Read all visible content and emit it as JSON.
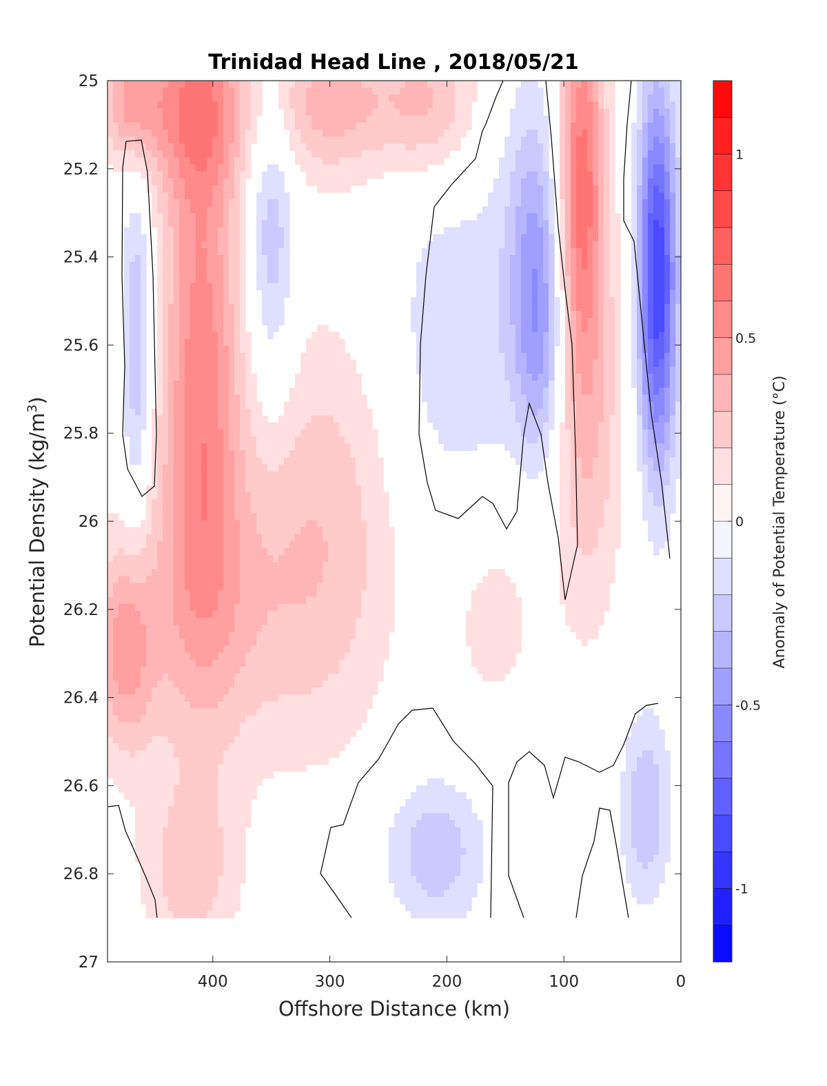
{
  "chart_data": {
    "type": "filled-contour",
    "title": "Trinidad Head Line , 2018/05/21",
    "xlabel": "Offshore Distance (km)",
    "ylabel": "Potential Density (kg/m",
    "ylabel_sup": "3",
    "ylabel_end": ")",
    "xlim": [
      490,
      0
    ],
    "ylim": [
      25,
      27
    ],
    "x_reversed": true,
    "y_reversed": true,
    "x_ticks": [
      {
        "value": 400,
        "label": "400"
      },
      {
        "value": 300,
        "label": "300"
      },
      {
        "value": 200,
        "label": "200"
      },
      {
        "value": 100,
        "label": "100"
      },
      {
        "value": 0,
        "label": "0"
      }
    ],
    "y_ticks": [
      {
        "value": 25,
        "label": "25"
      },
      {
        "value": 25.2,
        "label": "25.2"
      },
      {
        "value": 25.4,
        "label": "25.4"
      },
      {
        "value": 25.6,
        "label": "25.6"
      },
      {
        "value": 25.8,
        "label": "25.8"
      },
      {
        "value": 26,
        "label": "26"
      },
      {
        "value": 26.2,
        "label": "26.2"
      },
      {
        "value": 26.4,
        "label": "26.4"
      },
      {
        "value": 26.6,
        "label": "26.6"
      },
      {
        "value": 26.8,
        "label": "26.8"
      },
      {
        "value": 27,
        "label": "27"
      }
    ],
    "data_bottom": 26.9,
    "grid": false,
    "colorbar": {
      "label": "Anomaly of Potential Temperature (°C)",
      "range": [
        -1.2,
        1.2
      ],
      "step": 0.1,
      "ticks": [
        {
          "value": 1,
          "label": "1"
        },
        {
          "value": 0.5,
          "label": "0.5"
        },
        {
          "value": 0,
          "label": "0"
        },
        {
          "value": -0.5,
          "label": "-0.5"
        },
        {
          "value": -1,
          "label": "-1"
        }
      ],
      "colors": {
        "cold": "#0000ff",
        "neutral": "#ffffff",
        "warm": "#ff0000"
      }
    },
    "field_features": [
      {
        "x": 410,
        "y": 25.65,
        "amp": 0.55,
        "sx": 24,
        "sy": 0.45
      },
      {
        "x": 415,
        "y": 25.05,
        "amp": 0.45,
        "sx": 30,
        "sy": 0.15
      },
      {
        "x": 300,
        "y": 25.05,
        "amp": 0.35,
        "sx": 40,
        "sy": 0.12
      },
      {
        "x": 215,
        "y": 25.05,
        "amp": 0.3,
        "sx": 30,
        "sy": 0.12
      },
      {
        "x": 470,
        "y": 25.05,
        "amp": 0.4,
        "sx": 18,
        "sy": 0.1
      },
      {
        "x": 475,
        "y": 26.3,
        "amp": 0.38,
        "sx": 18,
        "sy": 0.16
      },
      {
        "x": 300,
        "y": 26.0,
        "amp": 0.25,
        "sx": 45,
        "sy": 0.35
      },
      {
        "x": 400,
        "y": 26.2,
        "amp": 0.25,
        "sx": 60,
        "sy": 0.25
      },
      {
        "x": 160,
        "y": 26.2,
        "amp": 0.15,
        "sx": 30,
        "sy": 0.2
      },
      {
        "x": 85,
        "y": 25.2,
        "amp": 0.6,
        "sx": 14,
        "sy": 0.3
      },
      {
        "x": 80,
        "y": 25.75,
        "amp": 0.3,
        "sx": 22,
        "sy": 0.35
      },
      {
        "x": 420,
        "y": 26.8,
        "amp": 0.25,
        "sx": 30,
        "sy": 0.15
      },
      {
        "x": 465,
        "y": 25.6,
        "amp": -0.32,
        "sx": 9,
        "sy": 0.28
      },
      {
        "x": 350,
        "y": 25.35,
        "amp": -0.3,
        "sx": 14,
        "sy": 0.25
      },
      {
        "x": 125,
        "y": 25.35,
        "amp": -0.3,
        "sx": 18,
        "sy": 0.25
      },
      {
        "x": 120,
        "y": 25.6,
        "amp": -0.28,
        "sx": 14,
        "sy": 0.2
      },
      {
        "x": 190,
        "y": 25.6,
        "amp": -0.18,
        "sx": 50,
        "sy": 0.3
      },
      {
        "x": 20,
        "y": 25.45,
        "amp": -0.9,
        "sx": 12,
        "sy": 0.3
      },
      {
        "x": 210,
        "y": 26.75,
        "amp": -0.28,
        "sx": 30,
        "sy": 0.12
      },
      {
        "x": 30,
        "y": 26.65,
        "amp": -0.3,
        "sx": 15,
        "sy": 0.15
      }
    ]
  }
}
